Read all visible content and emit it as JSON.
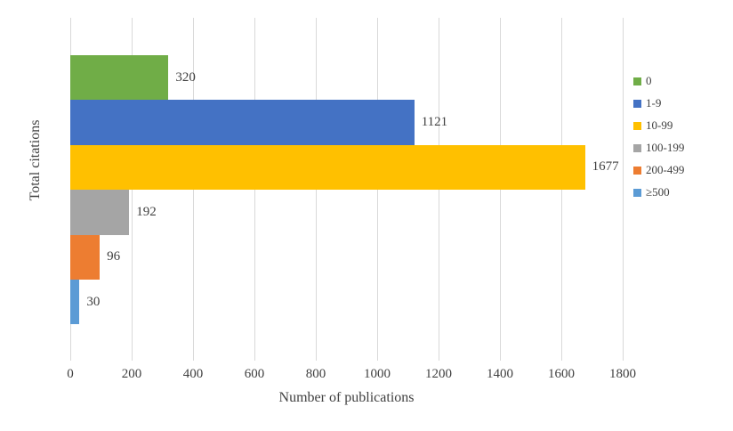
{
  "chart_data": {
    "type": "bar",
    "orientation": "horizontal",
    "title": "",
    "xlabel": "Number of publications",
    "ylabel": "Total citations",
    "xlim": [
      0,
      1800
    ],
    "xticks": [
      0,
      200,
      400,
      600,
      800,
      1000,
      1200,
      1400,
      1600,
      1800
    ],
    "grid": true,
    "legend_position": "right",
    "series": [
      {
        "name": "0",
        "value": 320,
        "color": "#70AD47"
      },
      {
        "name": "1-9",
        "value": 1121,
        "color": "#4472C4"
      },
      {
        "name": "10-99",
        "value": 1677,
        "color": "#FFC000"
      },
      {
        "name": "100-199",
        "value": 192,
        "color": "#A5A5A5"
      },
      {
        "name": "200-499",
        "value": 96,
        "color": "#ED7D31"
      },
      {
        "name": "≥500",
        "value": 30,
        "color": "#5B9BD5"
      }
    ]
  },
  "colors": {
    "gridline": "#D9D9D9",
    "text": "#404040"
  }
}
